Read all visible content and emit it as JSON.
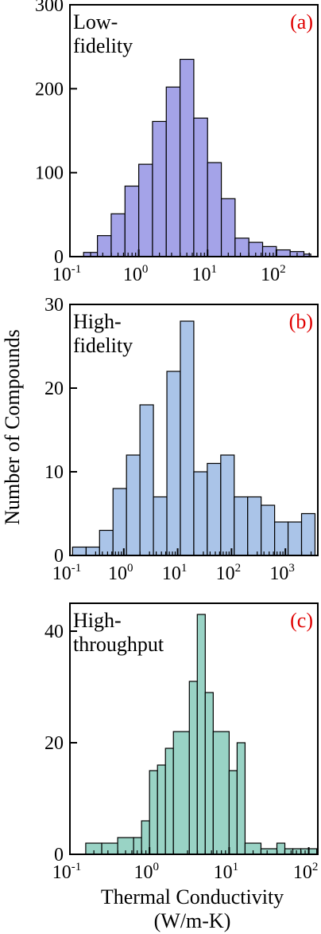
{
  "ylabel": "Number of Compounds",
  "xlabel_line1": "Thermal Conductivity",
  "xlabel_line2": "(W/m-K)",
  "chart_data": [
    {
      "type": "bar",
      "panel": "(a)",
      "title_line1": "Low-",
      "title_line2": "fidelity",
      "x_scale": "log",
      "xlim": [
        0.1,
        400
      ],
      "ylim": [
        0,
        300
      ],
      "yticks": [
        0,
        100,
        200,
        300
      ],
      "xticks": [
        0.1,
        1,
        10,
        100
      ],
      "xtick_labels": [
        "10",
        "10",
        "10",
        "10"
      ],
      "xtick_exponents": [
        "-1",
        "0",
        "1",
        "2"
      ],
      "color": "#a4a3e8",
      "bins": [
        {
          "x0": 0.158,
          "x1": 0.251,
          "value": 5
        },
        {
          "x0": 0.251,
          "x1": 0.398,
          "value": 25
        },
        {
          "x0": 0.398,
          "x1": 0.631,
          "value": 51
        },
        {
          "x0": 0.631,
          "x1": 1.0,
          "value": 84
        },
        {
          "x0": 1.0,
          "x1": 1.585,
          "value": 110
        },
        {
          "x0": 1.585,
          "x1": 2.512,
          "value": 161
        },
        {
          "x0": 2.512,
          "x1": 3.981,
          "value": 202
        },
        {
          "x0": 3.981,
          "x1": 6.31,
          "value": 235
        },
        {
          "x0": 6.31,
          "x1": 10.0,
          "value": 165
        },
        {
          "x0": 10.0,
          "x1": 15.85,
          "value": 112
        },
        {
          "x0": 15.85,
          "x1": 25.12,
          "value": 69
        },
        {
          "x0": 25.12,
          "x1": 39.81,
          "value": 22
        },
        {
          "x0": 39.81,
          "x1": 63.1,
          "value": 17
        },
        {
          "x0": 63.1,
          "x1": 100.0,
          "value": 12
        },
        {
          "x0": 100.0,
          "x1": 158.5,
          "value": 8
        },
        {
          "x0": 158.5,
          "x1": 251.2,
          "value": 6
        },
        {
          "x0": 251.2,
          "x1": 316.2,
          "value": 3
        }
      ]
    },
    {
      "type": "bar",
      "panel": "(b)",
      "title_line1": "High-",
      "title_line2": "fidelity",
      "x_scale": "log",
      "xlim": [
        0.1,
        4000
      ],
      "ylim": [
        0,
        30
      ],
      "yticks": [
        0,
        10,
        20,
        30
      ],
      "xticks": [
        0.1,
        1,
        10,
        100,
        1000
      ],
      "xtick_labels": [
        "10",
        "10",
        "10",
        "10",
        "10"
      ],
      "xtick_exponents": [
        "-1",
        "0",
        "1",
        "2",
        "3"
      ],
      "color": "#aac4e8",
      "bins": [
        {
          "x0": 0.112,
          "x1": 0.2,
          "value": 1
        },
        {
          "x0": 0.2,
          "x1": 0.355,
          "value": 1
        },
        {
          "x0": 0.355,
          "x1": 0.631,
          "value": 3
        },
        {
          "x0": 0.631,
          "x1": 1.122,
          "value": 8
        },
        {
          "x0": 1.122,
          "x1": 1.995,
          "value": 12
        },
        {
          "x0": 1.995,
          "x1": 3.548,
          "value": 18
        },
        {
          "x0": 3.548,
          "x1": 6.31,
          "value": 7
        },
        {
          "x0": 6.31,
          "x1": 11.22,
          "value": 22
        },
        {
          "x0": 11.22,
          "x1": 19.95,
          "value": 28
        },
        {
          "x0": 19.95,
          "x1": 35.48,
          "value": 10
        },
        {
          "x0": 35.48,
          "x1": 63.1,
          "value": 11
        },
        {
          "x0": 63.1,
          "x1": 112.2,
          "value": 12
        },
        {
          "x0": 112.2,
          "x1": 199.5,
          "value": 7
        },
        {
          "x0": 199.5,
          "x1": 354.8,
          "value": 7
        },
        {
          "x0": 354.8,
          "x1": 631.0,
          "value": 6
        },
        {
          "x0": 631.0,
          "x1": 1122.0,
          "value": 4
        },
        {
          "x0": 1122.0,
          "x1": 1995.0,
          "value": 4
        },
        {
          "x0": 1995.0,
          "x1": 3548.0,
          "value": 5
        }
      ]
    },
    {
      "type": "bar",
      "panel": "(c)",
      "title_line1": "High-",
      "title_line2": "throughput",
      "x_scale": "log",
      "xlim": [
        0.1,
        130
      ],
      "ylim": [
        0,
        45
      ],
      "yticks": [
        0,
        20,
        40
      ],
      "xticks": [
        0.1,
        1,
        10,
        100
      ],
      "xtick_labels": [
        "10",
        "10",
        "10",
        "10"
      ],
      "xtick_exponents": [
        "-1",
        "0",
        "1",
        "2"
      ],
      "color": "#99d3c5",
      "bins": [
        {
          "x0": 0.158,
          "x1": 0.251,
          "value": 2
        },
        {
          "x0": 0.251,
          "x1": 0.398,
          "value": 2
        },
        {
          "x0": 0.398,
          "x1": 0.631,
          "value": 3
        },
        {
          "x0": 0.631,
          "x1": 0.794,
          "value": 3
        },
        {
          "x0": 0.794,
          "x1": 1.0,
          "value": 6
        },
        {
          "x0": 1.0,
          "x1": 1.259,
          "value": 15
        },
        {
          "x0": 1.259,
          "x1": 1.585,
          "value": 16
        },
        {
          "x0": 1.585,
          "x1": 1.995,
          "value": 19
        },
        {
          "x0": 1.995,
          "x1": 3.162,
          "value": 22
        },
        {
          "x0": 3.162,
          "x1": 3.981,
          "value": 31
        },
        {
          "x0": 3.981,
          "x1": 5.012,
          "value": 43
        },
        {
          "x0": 5.012,
          "x1": 6.31,
          "value": 29
        },
        {
          "x0": 6.31,
          "x1": 10.0,
          "value": 22
        },
        {
          "x0": 10.0,
          "x1": 12.59,
          "value": 15
        },
        {
          "x0": 12.59,
          "x1": 15.85,
          "value": 20
        },
        {
          "x0": 15.85,
          "x1": 25.12,
          "value": 2
        },
        {
          "x0": 25.12,
          "x1": 39.81,
          "value": 1
        },
        {
          "x0": 39.81,
          "x1": 50.12,
          "value": 2
        },
        {
          "x0": 50.12,
          "x1": 63.1,
          "value": 1
        },
        {
          "x0": 63.1,
          "x1": 79.43,
          "value": 1
        },
        {
          "x0": 79.43,
          "x1": 100.0,
          "value": 1
        },
        {
          "x0": 100.0,
          "x1": 125.9,
          "value": 1
        }
      ]
    }
  ]
}
